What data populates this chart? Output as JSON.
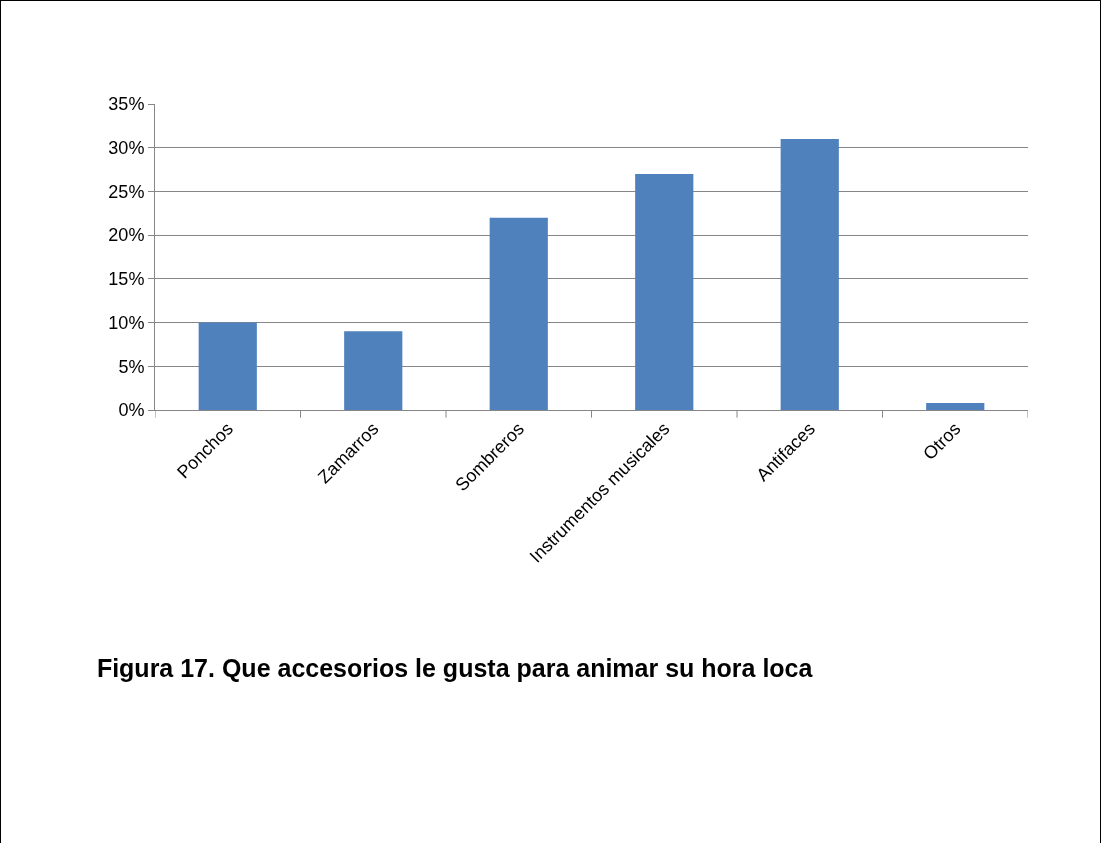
{
  "chart_data": {
    "type": "bar",
    "title": "Figura 17. Que accesorios le gusta para animar su hora loca",
    "categories": [
      "Ponchos",
      "Zamarros",
      "Sombreros",
      "Instrumentos musicales",
      "Antifaces",
      "Otros"
    ],
    "values": [
      10,
      9,
      22,
      27,
      31,
      0.8
    ],
    "color": "#4f81bd",
    "ylim": [
      0,
      35
    ],
    "yticks": [
      {
        "value": 0,
        "label": "0%"
      },
      {
        "value": 5,
        "label": "5%"
      },
      {
        "value": 10,
        "label": "10%"
      },
      {
        "value": 15,
        "label": "15%"
      },
      {
        "value": 20,
        "label": "20%"
      },
      {
        "value": 25,
        "label": "25%"
      },
      {
        "value": 30,
        "label": "30%"
      },
      {
        "value": 35,
        "label": "35%"
      }
    ],
    "grid": "y",
    "legend": false
  }
}
